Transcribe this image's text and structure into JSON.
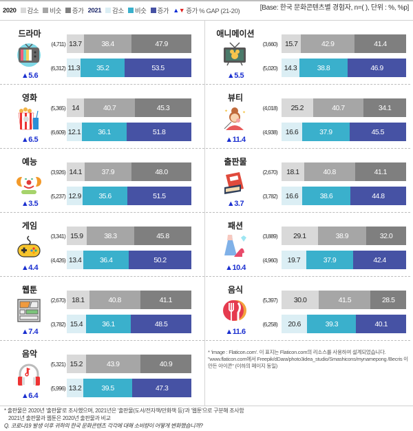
{
  "legend": {
    "year_2020": "2020",
    "year_2021": "2021",
    "items_2020": [
      {
        "label": "감소",
        "color": "#d9d9d9"
      },
      {
        "label": "비슷",
        "color": "#a6a6a6"
      },
      {
        "label": "증가",
        "color": "#7f7f7f"
      }
    ],
    "items_2021": [
      {
        "label": "감소",
        "color": "#dbeef4"
      },
      {
        "label": "비슷",
        "color": "#3ab0cc"
      },
      {
        "label": "증가",
        "color": "#4652a4"
      }
    ],
    "gap_up": "▲",
    "gap_down": "▼",
    "gap_label": "증가 % GAP (21-20)"
  },
  "base_note": "[Base: 한국 문화콘텐츠별 경험자, n=( ), 단위 : %, %p]",
  "colors": {
    "y2020": [
      "#d9d9d9",
      "#a6a6a6",
      "#7f7f7f"
    ],
    "y2021": [
      "#dbeef4",
      "#3ab0cc",
      "#4652a4"
    ],
    "gap_up": "#1a2fd0"
  },
  "chart_data": {
    "type": "bar",
    "stacked": true,
    "orientation": "horizontal",
    "title": "코로나19 발생 이후 한국 문화콘텐츠 소비량 변화",
    "unit": "%",
    "segments": [
      "감소",
      "비슷",
      "증가"
    ],
    "categories": [
      {
        "name": "드라마",
        "gap": "▲5.6",
        "y2020": {
          "n": "(4,711)",
          "values": [
            13.7,
            38.4,
            47.9
          ]
        },
        "y2021": {
          "n": "(6,312)",
          "values": [
            11.3,
            35.2,
            53.5
          ]
        }
      },
      {
        "name": "영화",
        "gap": "▲6.5",
        "y2020": {
          "n": "(5,365)",
          "values": [
            14,
            40.7,
            45.3
          ]
        },
        "y2021": {
          "n": "(6,609)",
          "values": [
            12.1,
            36.1,
            51.8
          ]
        }
      },
      {
        "name": "예능",
        "gap": "▲3.5",
        "y2020": {
          "n": "(3,926)",
          "values": [
            14.1,
            37.9,
            48.0
          ]
        },
        "y2021": {
          "n": "(5,237)",
          "values": [
            12.9,
            35.6,
            51.5
          ]
        }
      },
      {
        "name": "게임",
        "gap": "▲4.4",
        "y2020": {
          "n": "(3,341)",
          "values": [
            15.9,
            38.3,
            45.8
          ]
        },
        "y2021": {
          "n": "(4,426)",
          "values": [
            13.4,
            36.4,
            50.2
          ]
        }
      },
      {
        "name": "웹툰",
        "gap": "▲7.4",
        "y2020": {
          "n": "(2,670)",
          "values": [
            18.1,
            40.8,
            41.1
          ]
        },
        "y2021": {
          "n": "(3,782)",
          "values": [
            15.4,
            36.1,
            48.5
          ]
        }
      },
      {
        "name": "음악",
        "gap": "▲6.4",
        "y2020": {
          "n": "(5,321)",
          "values": [
            15.2,
            43.9,
            40.9
          ]
        },
        "y2021": {
          "n": "(5,996)",
          "values": [
            13.2,
            39.5,
            47.3
          ]
        }
      },
      {
        "name": "애니메이션",
        "gap": "▲5.5",
        "y2020": {
          "n": "(3,660)",
          "values": [
            15.7,
            42.9,
            41.4
          ]
        },
        "y2021": {
          "n": "(5,020)",
          "values": [
            14.3,
            38.8,
            46.9
          ]
        }
      },
      {
        "name": "뷰티",
        "gap": "▲11.4",
        "y2020": {
          "n": "(4,018)",
          "values": [
            25.2,
            40.7,
            34.1
          ]
        },
        "y2021": {
          "n": "(4,938)",
          "values": [
            16.6,
            37.9,
            45.5
          ]
        }
      },
      {
        "name": "출판물",
        "gap": "▲3.7",
        "y2020": {
          "n": "(2,670)",
          "values": [
            18.1,
            40.8,
            41.1
          ]
        },
        "y2021": {
          "n": "(3,782)",
          "values": [
            16.6,
            38.6,
            44.8
          ]
        }
      },
      {
        "name": "패션",
        "gap": "▲10.4",
        "y2020": {
          "n": "(3,889)",
          "values": [
            29.1,
            38.9,
            32.0
          ]
        },
        "y2021": {
          "n": "(4,960)",
          "values": [
            19.7,
            37.9,
            42.4
          ]
        }
      },
      {
        "name": "음식",
        "gap": "▲11.6",
        "y2020": {
          "n": "(5,397)",
          "values": [
            30.0,
            41.5,
            28.5
          ]
        },
        "y2021": {
          "n": "(6,258)",
          "values": [
            20.6,
            39.3,
            40.1
          ]
        }
      }
    ],
    "xlim": [
      0,
      100
    ],
    "legend_position": "top"
  },
  "left": [
    {
      "name": "드라마",
      "icon": "tv-icon",
      "gap": "▲5.6",
      "n2020": "(4,711)",
      "v2020": [
        "13.7",
        "38.4",
        "47.9"
      ],
      "n2021": "(6,312)",
      "v2021": [
        "11.3",
        "35.2",
        "53.5"
      ]
    },
    {
      "name": "영화",
      "icon": "popcorn-icon",
      "gap": "▲6.5",
      "n2020": "(5,365)",
      "v2020": [
        "14",
        "40.7",
        "45.3"
      ],
      "n2021": "(6,609)",
      "v2021": [
        "12.1",
        "36.1",
        "51.8"
      ]
    },
    {
      "name": "예능",
      "icon": "clown-icon",
      "gap": "▲3.5",
      "n2020": "(3,926)",
      "v2020": [
        "14.1",
        "37.9",
        "48.0"
      ],
      "n2021": "(5,237)",
      "v2021": [
        "12.9",
        "35.6",
        "51.5"
      ]
    },
    {
      "name": "게임",
      "icon": "gamepad-icon",
      "gap": "▲4.4",
      "n2020": "(3,341)",
      "v2020": [
        "15.9",
        "38.3",
        "45.8"
      ],
      "n2021": "(4,426)",
      "v2021": [
        "13.4",
        "36.4",
        "50.2"
      ]
    },
    {
      "name": "웹툰",
      "icon": "webtoon-icon",
      "gap": "▲7.4",
      "n2020": "(2,670)",
      "v2020": [
        "18.1",
        "40.8",
        "41.1"
      ],
      "n2021": "(3,782)",
      "v2021": [
        "15.4",
        "36.1",
        "48.5"
      ]
    },
    {
      "name": "음악",
      "icon": "headphones-icon",
      "gap": "▲6.4",
      "n2020": "(5,321)",
      "v2020": [
        "15.2",
        "43.9",
        "40.9"
      ],
      "n2021": "(5,996)",
      "v2021": [
        "13.2",
        "39.5",
        "47.3"
      ]
    }
  ],
  "right": [
    {
      "name": "애니메이션",
      "icon": "animation-tv-icon",
      "gap": "▲5.5",
      "n2020": "(3,660)",
      "v2020": [
        "15.7",
        "42.9",
        "41.4"
      ],
      "n2021": "(5,020)",
      "v2021": [
        "14.3",
        "38.8",
        "46.9"
      ]
    },
    {
      "name": "뷰티",
      "icon": "beauty-icon",
      "gap": "▲11.4",
      "n2020": "(4,018)",
      "v2020": [
        "25.2",
        "40.7",
        "34.1"
      ],
      "n2021": "(4,938)",
      "v2021": [
        "16.6",
        "37.9",
        "45.5"
      ]
    },
    {
      "name": "출판물",
      "icon": "book-icon",
      "gap": "▲3.7",
      "n2020": "(2,670)",
      "v2020": [
        "18.1",
        "40.8",
        "41.1"
      ],
      "n2021": "(3,782)",
      "v2021": [
        "16.6",
        "38.6",
        "44.8"
      ]
    },
    {
      "name": "패션",
      "icon": "fashion-icon",
      "gap": "▲10.4",
      "n2020": "(3,889)",
      "v2020": [
        "29.1",
        "38.9",
        "32.0"
      ],
      "n2021": "(4,960)",
      "v2021": [
        "19.7",
        "37.9",
        "42.4"
      ]
    },
    {
      "name": "음식",
      "icon": "food-icon",
      "gap": "▲11.6",
      "n2020": "(5,397)",
      "v2020": [
        "30.0",
        "41.5",
        "28.5"
      ],
      "n2021": "(6,258)",
      "v2021": [
        "20.6",
        "39.3",
        "40.1"
      ]
    }
  ],
  "image_note": "* 'image : Flaticon.com'. 이 표지는 Flaticon.com의 리소스를 사용하여 설계되었습니다. \"www.flaticon.com에서 Freepik/dDara/photo3idea_studio/Smashicons/mynamepong /Becris 이 만든 아이콘\" (이하의 페이지 동일)",
  "footnote": {
    "line1": "* 출판물은 2020년 '출판물'로 조사했으며, 2021년은 '출판물(도서/전자책/만화책 등)'과 '웹툰'으로 구분해 조사함",
    "line2": "2021년 출판물과 웹툰은 2020년 출판물과 비교",
    "question": "Q. 코로나19 발생 이후 귀하의 한국 문화콘텐츠 각각에 대해 소비량이 어떻게 변화했습니까?"
  }
}
